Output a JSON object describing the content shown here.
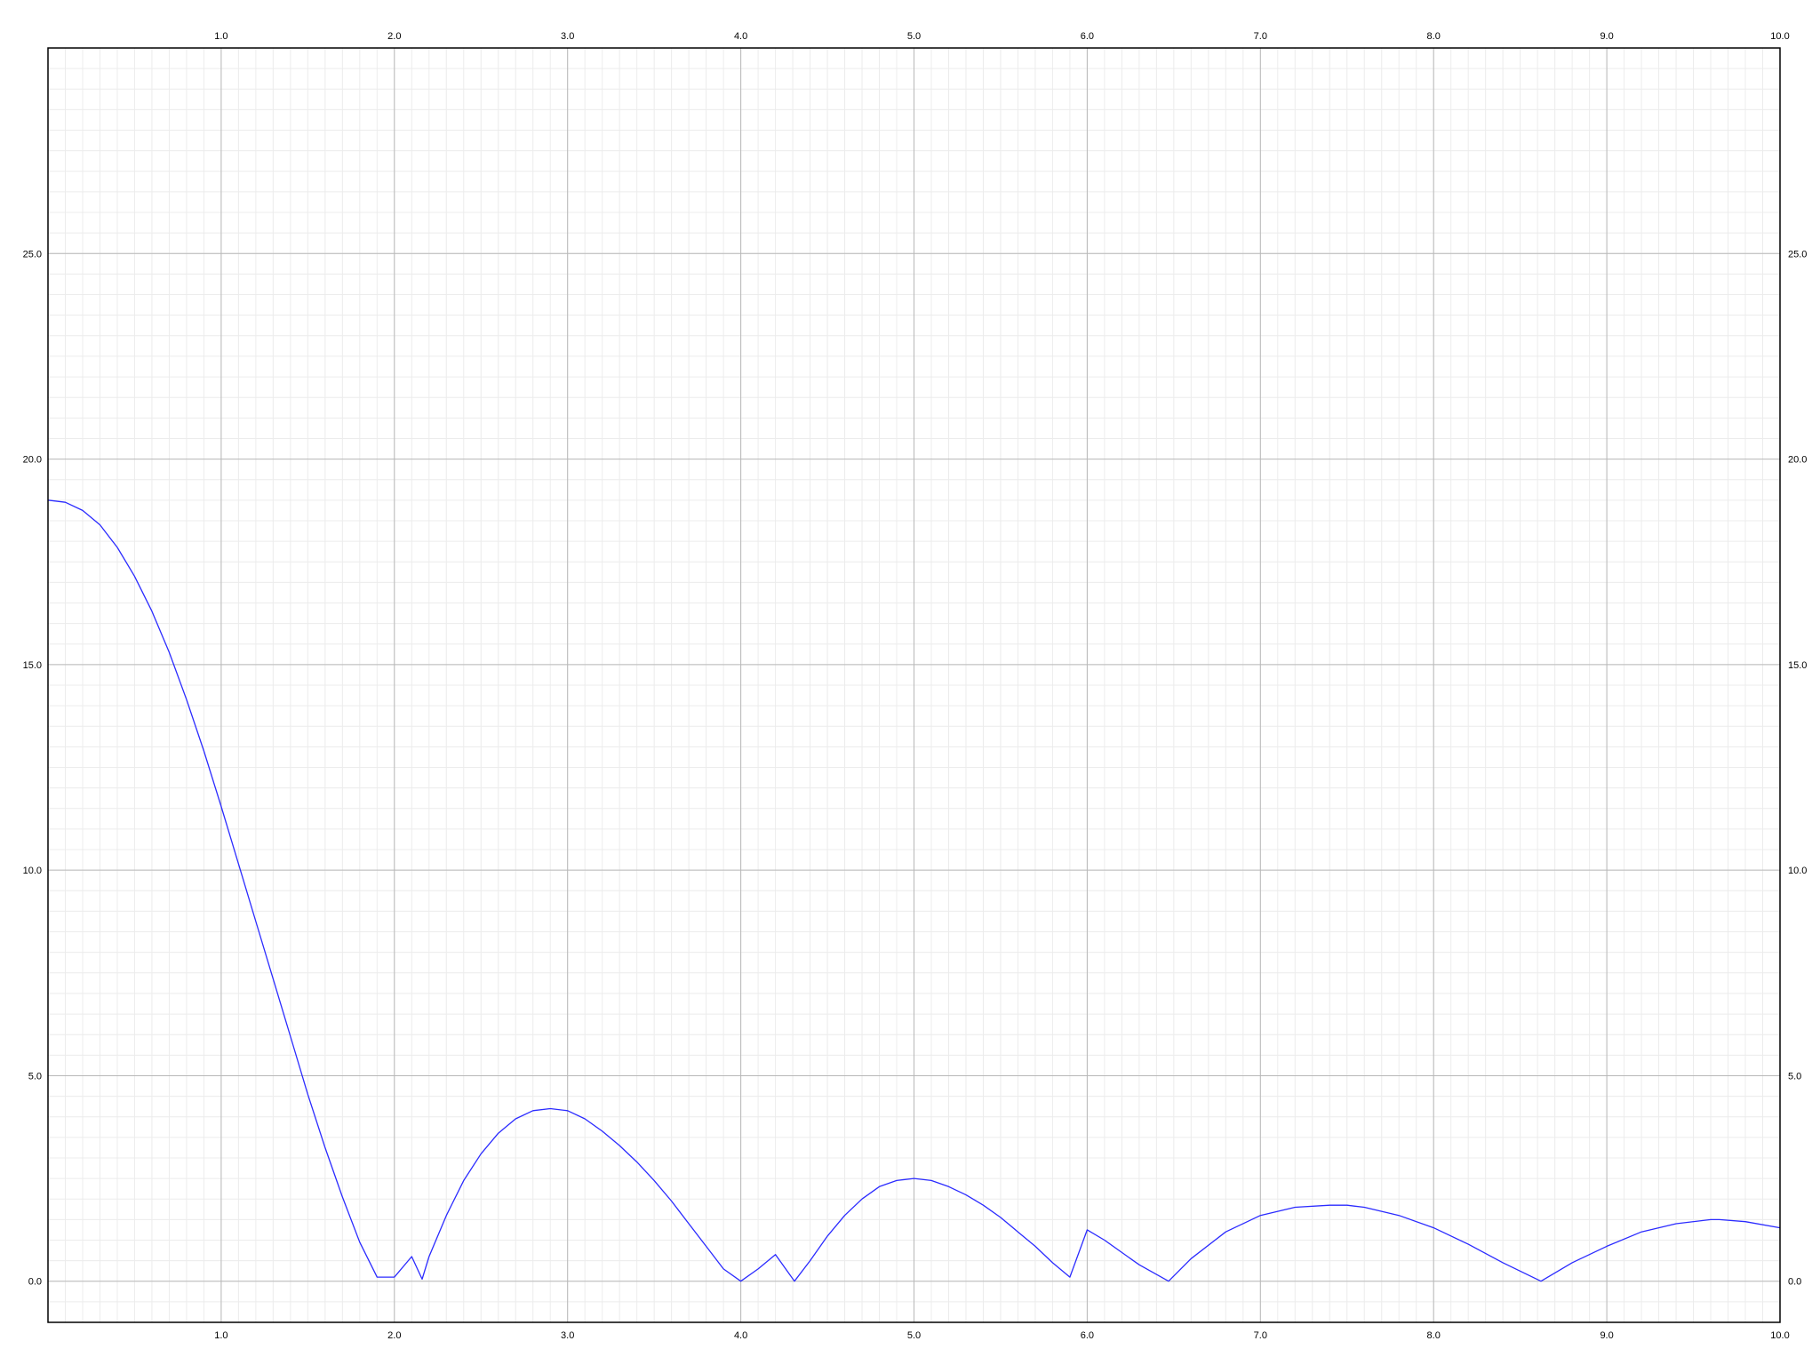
{
  "chart_data": {
    "type": "line",
    "title": "",
    "xlabel": "",
    "ylabel": "",
    "xlim": [
      0,
      10
    ],
    "ylim": [
      -1,
      30
    ],
    "grid": true,
    "x_ticks": [
      {
        "value": 1,
        "label": "1.0"
      },
      {
        "value": 2,
        "label": "2.0"
      },
      {
        "value": 3,
        "label": "3.0"
      },
      {
        "value": 4,
        "label": "4.0"
      },
      {
        "value": 5,
        "label": "5.0"
      },
      {
        "value": 6,
        "label": "6.0"
      },
      {
        "value": 7,
        "label": "7.0"
      },
      {
        "value": 8,
        "label": "8.0"
      },
      {
        "value": 9,
        "label": "9.0"
      },
      {
        "value": 10,
        "label": "10.0"
      }
    ],
    "y_ticks": [
      {
        "value": 0,
        "label": "0.0"
      },
      {
        "value": 5,
        "label": "5.0"
      },
      {
        "value": 10,
        "label": "10.0"
      },
      {
        "value": 15,
        "label": "15.0"
      },
      {
        "value": 20,
        "label": "20.0"
      },
      {
        "value": 25,
        "label": "25.0"
      }
    ],
    "series": [
      {
        "color": "#2b2bff",
        "x": [
          0.0,
          0.1,
          0.2,
          0.3,
          0.4,
          0.5,
          0.6,
          0.7,
          0.8,
          0.9,
          1.0,
          1.1,
          1.2,
          1.3,
          1.4,
          1.5,
          1.6,
          1.7,
          1.8,
          1.9,
          2.0,
          2.1,
          2.16,
          2.2,
          2.3,
          2.4,
          2.5,
          2.6,
          2.7,
          2.8,
          2.9,
          3.0,
          3.1,
          3.2,
          3.3,
          3.4,
          3.5,
          3.6,
          3.7,
          3.8,
          3.9,
          4.0,
          4.1,
          4.2,
          4.31,
          4.4,
          4.5,
          4.6,
          4.7,
          4.8,
          4.9,
          5.0,
          5.1,
          5.2,
          5.3,
          5.4,
          5.5,
          5.6,
          5.7,
          5.8,
          5.9,
          6.0,
          6.1,
          6.2,
          6.3,
          6.47,
          6.6,
          6.8,
          7.0,
          7.2,
          7.4,
          7.5,
          7.6,
          7.8,
          8.0,
          8.2,
          8.4,
          8.62,
          8.8,
          9.0,
          9.2,
          9.4,
          9.6,
          9.65,
          9.8,
          10.0
        ],
        "y": [
          19.0,
          18.95,
          18.75,
          18.4,
          17.85,
          17.15,
          16.3,
          15.3,
          14.15,
          12.9,
          11.55,
          10.15,
          8.75,
          7.35,
          5.95,
          4.55,
          3.25,
          2.05,
          0.95,
          0.1,
          0.1,
          0.6,
          0.05,
          0.6,
          1.6,
          2.45,
          3.1,
          3.6,
          3.95,
          4.15,
          4.2,
          4.15,
          3.95,
          3.65,
          3.3,
          2.9,
          2.45,
          1.95,
          1.4,
          0.85,
          0.3,
          0.0,
          0.3,
          0.65,
          0.0,
          0.5,
          1.1,
          1.6,
          2.0,
          2.3,
          2.45,
          2.5,
          2.45,
          2.3,
          2.1,
          1.85,
          1.55,
          1.2,
          0.85,
          0.45,
          0.1,
          1.25,
          1.0,
          0.7,
          0.4,
          0.0,
          0.55,
          1.2,
          1.6,
          1.8,
          1.85,
          1.85,
          1.8,
          1.6,
          1.3,
          0.9,
          0.45,
          0.0,
          0.45,
          0.85,
          1.2,
          1.4,
          1.5,
          1.5,
          1.45,
          1.3
        ]
      }
    ]
  }
}
